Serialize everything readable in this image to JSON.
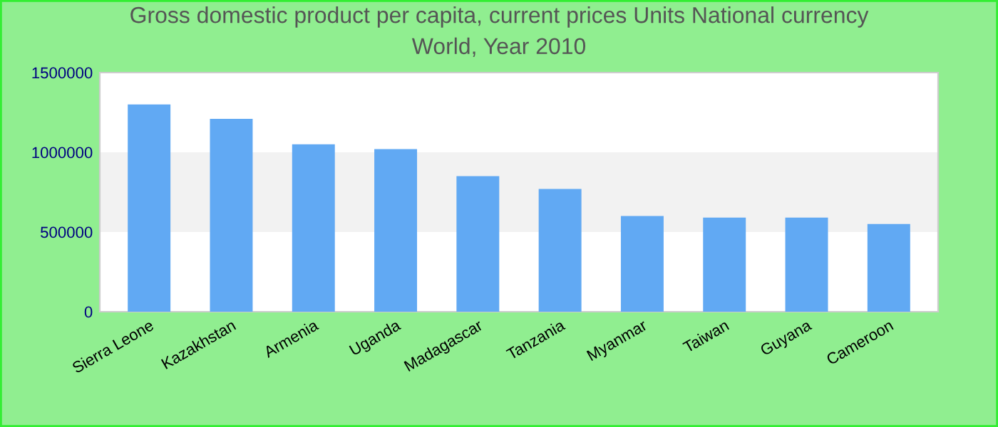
{
  "chart_data": {
    "type": "bar",
    "title": "Gross domestic product per capita, current prices Units National currency\nWorld, Year 2010",
    "categories": [
      "Sierra Leone",
      "Kazakhstan",
      "Armenia",
      "Uganda",
      "Madagascar",
      "Tanzania",
      "Myanmar",
      "Taiwan",
      "Guyana",
      "Cameroon"
    ],
    "values": [
      1300000,
      1210000,
      1050000,
      1020000,
      850000,
      770000,
      600000,
      590000,
      590000,
      550000
    ],
    "color": "#61a9f3",
    "ylim": [
      0,
      1500000
    ],
    "yticks": [
      0,
      500000,
      1000000,
      1500000
    ],
    "bands": [
      {
        "axis": "y",
        "from": 500000,
        "to": 1000000,
        "color": "#f2f2f2"
      }
    ],
    "grid": false,
    "legend": false
  }
}
